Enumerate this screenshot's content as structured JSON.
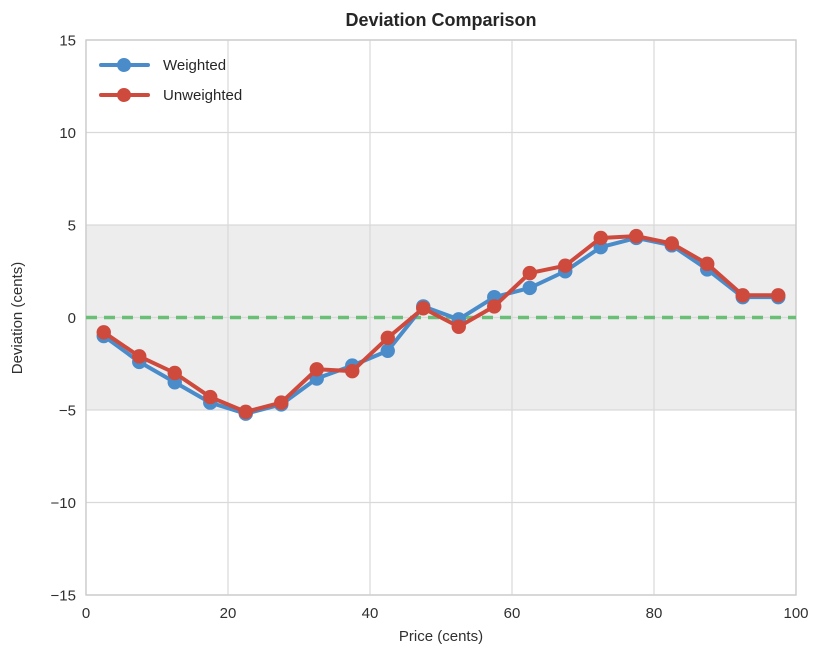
{
  "title": "Deviation Comparison",
  "colors": {
    "background": "#ffffff",
    "grid": "#d9d9d9",
    "spine": "#cccccc",
    "band": "#ededed",
    "text": "#262626",
    "weighted": "#4a8cca",
    "unweighted": "#cd4a3d",
    "zero_line": "#6abf77"
  },
  "legend": {
    "items": [
      {
        "label": "Weighted",
        "color": "#4a8cca"
      },
      {
        "label": "Unweighted",
        "color": "#cd4a3d"
      }
    ],
    "position": "upper left"
  },
  "chart_data": {
    "type": "line",
    "title": "Deviation Comparison",
    "xlabel": "Price (cents)",
    "ylabel": "Deviation (cents)",
    "xlim": [
      0,
      100
    ],
    "ylim": [
      -15,
      15
    ],
    "xticks": [
      0,
      20,
      40,
      60,
      80,
      100
    ],
    "yticks": [
      15,
      10,
      5,
      0,
      -5,
      -10,
      -15
    ],
    "grid": true,
    "legend_position": "upper left",
    "x": [
      2.5,
      7.5,
      12.5,
      17.5,
      22.5,
      27.5,
      32.5,
      37.5,
      42.5,
      47.5,
      52.5,
      57.5,
      62.5,
      67.5,
      72.5,
      77.5,
      82.5,
      87.5,
      92.5,
      97.5
    ],
    "series": [
      {
        "name": "Weighted",
        "color": "#4a8cca",
        "values": [
          -1.0,
          -2.4,
          -3.5,
          -4.6,
          -5.2,
          -4.7,
          -3.3,
          -2.6,
          -1.8,
          0.6,
          -0.1,
          1.1,
          1.6,
          2.5,
          3.8,
          4.3,
          3.9,
          2.6,
          1.1,
          1.1
        ]
      },
      {
        "name": "Unweighted",
        "color": "#cd4a3d",
        "values": [
          -0.8,
          -2.1,
          -3.0,
          -4.3,
          -5.1,
          -4.6,
          -2.8,
          -2.9,
          -1.1,
          0.5,
          -0.5,
          0.6,
          2.4,
          2.8,
          4.3,
          4.4,
          4.0,
          2.9,
          1.2,
          1.2
        ]
      }
    ],
    "zero_line": {
      "y": 0,
      "style": "dashed",
      "color": "#6abf77"
    },
    "band": {
      "ymin": -5,
      "ymax": 5,
      "color": "#ededed"
    }
  }
}
